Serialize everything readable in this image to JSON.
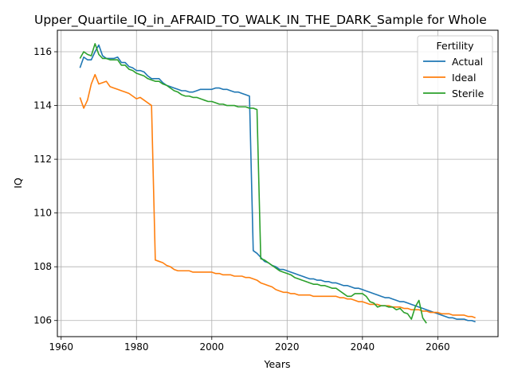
{
  "chart_data": {
    "type": "line",
    "title": "Upper_Quartile_IQ_in_AFRAID_TO_WALK_IN_THE_DARK_Sample for Whole",
    "xlabel": "Years",
    "ylabel": "IQ",
    "xlim": [
      1959,
      2076
    ],
    "ylim": [
      105.4,
      116.8
    ],
    "xticks": [
      1960,
      1980,
      2000,
      2020,
      2040,
      2060
    ],
    "yticks": [
      106,
      108,
      110,
      112,
      114,
      116
    ],
    "grid": true,
    "legend": {
      "title": "Fertility",
      "placement": "top-right"
    },
    "series": [
      {
        "name": "Actual",
        "color": "#1f77b4",
        "x": [
          1965,
          1966,
          1967,
          1968,
          1969,
          1970,
          1971,
          1972,
          1973,
          1974,
          1975,
          1976,
          1977,
          1978,
          1979,
          1980,
          1981,
          1982,
          1983,
          1984,
          1985,
          1986,
          1987,
          1988,
          1989,
          1990,
          1991,
          1992,
          1993,
          1994,
          1995,
          1996,
          1997,
          1998,
          1999,
          2000,
          2001,
          2002,
          2003,
          2004,
          2005,
          2006,
          2007,
          2008,
          2009,
          2010,
          2011,
          2012,
          2013,
          2014,
          2015,
          2016,
          2017,
          2018,
          2019,
          2020,
          2021,
          2022,
          2023,
          2024,
          2025,
          2026,
          2027,
          2028,
          2029,
          2030,
          2031,
          2032,
          2033,
          2034,
          2035,
          2036,
          2037,
          2038,
          2039,
          2040,
          2041,
          2042,
          2043,
          2044,
          2045,
          2046,
          2047,
          2048,
          2049,
          2050,
          2051,
          2052,
          2053,
          2054,
          2055,
          2056,
          2057,
          2058,
          2059,
          2060,
          2061,
          2062,
          2063,
          2064,
          2065,
          2066,
          2067,
          2068,
          2069,
          2070
        ],
        "y": [
          115.4,
          115.8,
          115.7,
          115.7,
          116.0,
          116.25,
          115.85,
          115.75,
          115.75,
          115.75,
          115.8,
          115.6,
          115.6,
          115.45,
          115.4,
          115.3,
          115.3,
          115.25,
          115.1,
          115.0,
          115.0,
          115.0,
          114.85,
          114.75,
          114.7,
          114.65,
          114.6,
          114.55,
          114.55,
          114.5,
          114.5,
          114.55,
          114.6,
          114.6,
          114.6,
          114.6,
          114.65,
          114.65,
          114.6,
          114.6,
          114.55,
          114.5,
          114.5,
          114.45,
          114.4,
          114.35,
          108.6,
          108.5,
          108.35,
          108.2,
          108.15,
          108.05,
          108.0,
          107.9,
          107.9,
          107.85,
          107.8,
          107.75,
          107.7,
          107.65,
          107.6,
          107.55,
          107.55,
          107.5,
          107.5,
          107.45,
          107.45,
          107.4,
          107.4,
          107.35,
          107.3,
          107.3,
          107.25,
          107.2,
          107.2,
          107.15,
          107.1,
          107.05,
          107.0,
          106.95,
          106.9,
          106.85,
          106.85,
          106.8,
          106.75,
          106.7,
          106.7,
          106.65,
          106.6,
          106.55,
          106.5,
          106.45,
          106.4,
          106.35,
          106.3,
          106.25,
          106.2,
          106.15,
          106.1,
          106.1,
          106.05,
          106.05,
          106.05,
          106.0,
          106.0,
          105.95
        ]
      },
      {
        "name": "Ideal",
        "color": "#ff7f0e",
        "x": [
          1965,
          1966,
          1967,
          1968,
          1969,
          1970,
          1971,
          1972,
          1973,
          1974,
          1975,
          1976,
          1977,
          1978,
          1979,
          1980,
          1981,
          1982,
          1983,
          1984,
          1985,
          1986,
          1987,
          1988,
          1989,
          1990,
          1991,
          1992,
          1993,
          1994,
          1995,
          1996,
          1997,
          1998,
          1999,
          2000,
          2001,
          2002,
          2003,
          2004,
          2005,
          2006,
          2007,
          2008,
          2009,
          2010,
          2011,
          2012,
          2013,
          2014,
          2015,
          2016,
          2017,
          2018,
          2019,
          2020,
          2021,
          2022,
          2023,
          2024,
          2025,
          2026,
          2027,
          2028,
          2029,
          2030,
          2031,
          2032,
          2033,
          2034,
          2035,
          2036,
          2037,
          2038,
          2039,
          2040,
          2041,
          2042,
          2043,
          2044,
          2045,
          2046,
          2047,
          2048,
          2049,
          2050,
          2051,
          2052,
          2053,
          2054,
          2055,
          2056,
          2057,
          2058,
          2059,
          2060,
          2061,
          2062,
          2063,
          2064,
          2065,
          2066,
          2067,
          2068,
          2069,
          2070
        ],
        "y": [
          114.3,
          113.9,
          114.2,
          114.8,
          115.15,
          114.8,
          114.85,
          114.9,
          114.7,
          114.65,
          114.6,
          114.55,
          114.5,
          114.45,
          114.35,
          114.25,
          114.3,
          114.2,
          114.1,
          114.0,
          108.25,
          108.2,
          108.15,
          108.05,
          108.0,
          107.9,
          107.85,
          107.85,
          107.85,
          107.85,
          107.8,
          107.8,
          107.8,
          107.8,
          107.8,
          107.8,
          107.75,
          107.75,
          107.7,
          107.7,
          107.7,
          107.65,
          107.65,
          107.65,
          107.6,
          107.6,
          107.55,
          107.5,
          107.4,
          107.35,
          107.3,
          107.25,
          107.15,
          107.1,
          107.05,
          107.05,
          107.0,
          107.0,
          106.95,
          106.95,
          106.95,
          106.95,
          106.9,
          106.9,
          106.9,
          106.9,
          106.9,
          106.9,
          106.9,
          106.85,
          106.85,
          106.8,
          106.8,
          106.75,
          106.7,
          106.7,
          106.65,
          106.6,
          106.6,
          106.6,
          106.55,
          106.55,
          106.55,
          106.5,
          106.5,
          106.5,
          106.45,
          106.45,
          106.4,
          106.4,
          106.4,
          106.35,
          106.35,
          106.3,
          106.3,
          106.3,
          106.25,
          106.25,
          106.25,
          106.2,
          106.2,
          106.2,
          106.2,
          106.15,
          106.15,
          106.1
        ]
      },
      {
        "name": "Sterile",
        "color": "#2ca02c",
        "x": [
          1965,
          1966,
          1967,
          1968,
          1969,
          1970,
          1971,
          1972,
          1973,
          1974,
          1975,
          1976,
          1977,
          1978,
          1979,
          1980,
          1981,
          1982,
          1983,
          1984,
          1985,
          1986,
          1987,
          1988,
          1989,
          1990,
          1991,
          1992,
          1993,
          1994,
          1995,
          1996,
          1997,
          1998,
          1999,
          2000,
          2001,
          2002,
          2003,
          2004,
          2005,
          2006,
          2007,
          2008,
          2009,
          2010,
          2011,
          2012,
          2013,
          2014,
          2015,
          2016,
          2017,
          2018,
          2019,
          2020,
          2021,
          2022,
          2023,
          2024,
          2025,
          2026,
          2027,
          2028,
          2029,
          2030,
          2031,
          2032,
          2033,
          2034,
          2035,
          2036,
          2037,
          2038,
          2039,
          2040,
          2041,
          2042,
          2043,
          2044,
          2045,
          2046,
          2047,
          2048,
          2049,
          2050,
          2051,
          2052,
          2053,
          2054,
          2055,
          2056,
          2057
        ],
        "y": [
          115.75,
          116.0,
          115.9,
          115.85,
          116.3,
          115.9,
          115.75,
          115.75,
          115.7,
          115.7,
          115.7,
          115.5,
          115.5,
          115.35,
          115.3,
          115.2,
          115.15,
          115.1,
          115.0,
          114.95,
          114.9,
          114.9,
          114.8,
          114.75,
          114.65,
          114.55,
          114.5,
          114.4,
          114.35,
          114.35,
          114.3,
          114.3,
          114.25,
          114.2,
          114.15,
          114.15,
          114.1,
          114.05,
          114.05,
          114.0,
          114.0,
          114.0,
          113.95,
          113.95,
          113.95,
          113.9,
          113.9,
          113.85,
          108.3,
          108.25,
          108.15,
          108.05,
          107.95,
          107.85,
          107.8,
          107.75,
          107.7,
          107.6,
          107.55,
          107.5,
          107.45,
          107.4,
          107.35,
          107.35,
          107.3,
          107.3,
          107.25,
          107.2,
          107.2,
          107.1,
          107.0,
          106.9,
          106.9,
          107.0,
          107.0,
          107.0,
          106.9,
          106.7,
          106.65,
          106.5,
          106.55,
          106.55,
          106.5,
          106.5,
          106.4,
          106.45,
          106.3,
          106.25,
          106.05,
          106.5,
          106.75,
          106.1,
          105.9
        ]
      }
    ]
  }
}
